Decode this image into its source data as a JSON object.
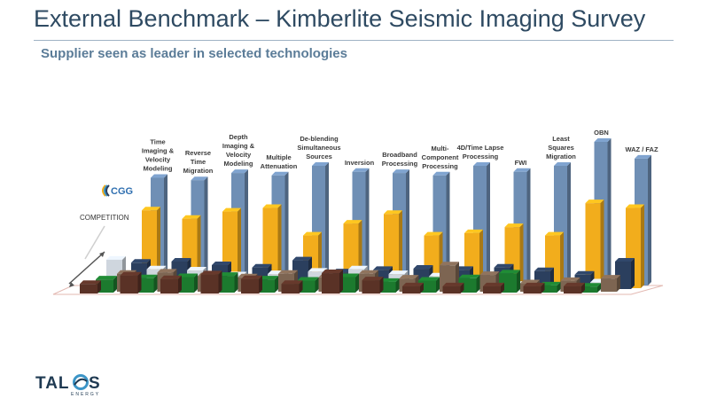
{
  "slide": {
    "title": "External Benchmark – Kimberlite Seismic Imaging Survey",
    "subtitle": "Supplier seen as leader in selected technologies"
  },
  "logo": {
    "name": "TALOS",
    "sub": "ENERGY"
  },
  "colors": {
    "title": "#2e4a62",
    "subtitle": "#5b7c98",
    "cgg": "#6f8fb5",
    "highlight": "#f2ad1c",
    "competitor_colors": [
      "#2b3f5e",
      "#cfd6de",
      "#7d6552",
      "#1c7a2e",
      "#5a3226"
    ]
  },
  "chart_data": {
    "type": "bar",
    "title": "",
    "legend_labels": {
      "cgg": "CGG",
      "competition": "COMPETITION"
    },
    "categories": [
      "Time Imaging & Velocity Modeling",
      "Reverse Time Migration",
      "Depth Imaging & Velocity Modeling",
      "Multiple Attenuation",
      "De-blending Simultaneous Sources",
      "Inversion",
      "Broadband Processing",
      "Multi-Component Processing",
      "4D/Time Lapse Processing",
      "FWI",
      "Least Squares Migration",
      "OBN",
      "WAZ / FAZ"
    ],
    "category_label_lines": [
      [
        "Time",
        "Imaging &",
        "Velocity",
        "Modeling"
      ],
      [
        "Reverse",
        "Time",
        "Migration"
      ],
      [
        "Depth",
        "Imaging &",
        "Velocity",
        "Modeling"
      ],
      [
        "Multiple",
        "Attenuation"
      ],
      [
        "De-blending",
        "Simultaneous",
        "Sources"
      ],
      [
        "Inversion"
      ],
      [
        "Broadband",
        "Processing"
      ],
      [
        "Multi-",
        "Component",
        "Processing"
      ],
      [
        "4D/Time Lapse",
        "Processing"
      ],
      [
        "FWI"
      ],
      [
        "Least",
        "Squares",
        "Migration"
      ],
      [
        "OBN"
      ],
      [
        "WAZ / FAZ"
      ]
    ],
    "series": [
      {
        "name": "CGG",
        "values": [
          9.0,
          8.8,
          9.4,
          9.2,
          10.0,
          9.5,
          9.4,
          9.2,
          10.0,
          9.5,
          10.0,
          12.0,
          10.6
        ]
      },
      {
        "name": "",
        "values": [
          6.5,
          5.8,
          6.4,
          6.7,
          4.4,
          5.4,
          6.2,
          4.4,
          4.6,
          5.1,
          4.4,
          7.1,
          6.7
        ]
      },
      {
        "name": "",
        "values": [
          2.2,
          2.3,
          2.0,
          1.8,
          2.4,
          1.4,
          1.6,
          1.7,
          1.6,
          1.8,
          1.5,
          1.2,
          2.3
        ]
      },
      {
        "name": "",
        "values": [
          2.6,
          1.8,
          1.7,
          1.3,
          1.4,
          1.6,
          1.8,
          1.4,
          1.2,
          1.0,
          0.5,
          0.4,
          0.7
        ]
      },
      {
        "name": "",
        "values": [
          1.5,
          1.6,
          1.3,
          1.2,
          1.5,
          1.2,
          1.5,
          1.1,
          2.2,
          1.4,
          0.7,
          0.9,
          1.1
        ]
      },
      {
        "name": "",
        "values": [
          1.1,
          1.2,
          1.3,
          1.4,
          1.1,
          1.0,
          1.3,
          0.9,
          1.0,
          1.2,
          1.6,
          0.6,
          0.5
        ]
      },
      {
        "name": "",
        "values": [
          0.8,
          1.5,
          1.2,
          1.6,
          1.2,
          0.8,
          1.7,
          1.1,
          0.6,
          0.6,
          0.6,
          0.6,
          0.6
        ]
      }
    ]
  }
}
